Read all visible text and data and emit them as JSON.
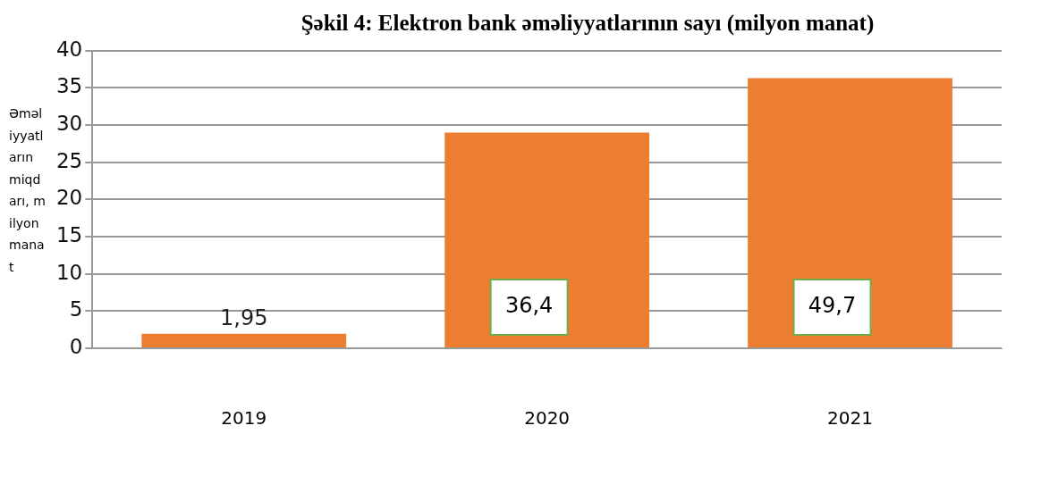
{
  "chart_data": {
    "type": "bar",
    "title": "Şəkil 4: Elektron bank əməliyyatlarının sayı (milyon manat)",
    "ylabel": "Əməliyyatların miqdarı, milyon manat",
    "categories": [
      "2019",
      "2020",
      "2021"
    ],
    "values": [
      1.95,
      29,
      36.3
    ],
    "value_labels": [
      "1,95",
      null,
      null
    ],
    "annotations": [
      "36,4",
      "49,7"
    ],
    "color": "#ed7d31",
    "ylim": [
      0,
      40
    ],
    "yticks": [
      0,
      5,
      10,
      15,
      20,
      25,
      30,
      35,
      40
    ],
    "grid": "y",
    "legend": false
  }
}
